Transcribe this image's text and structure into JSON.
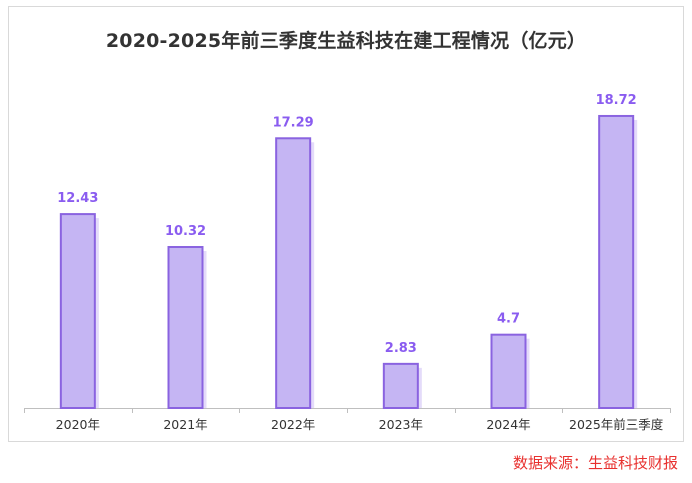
{
  "chart_data": {
    "type": "bar",
    "title": "2020-2025年前三季度生益科技在建工程情况（亿元）",
    "categories": [
      "2020年",
      "2021年",
      "2022年",
      "2023年",
      "2024年",
      "2025年前三季度"
    ],
    "values": [
      12.43,
      10.32,
      17.29,
      2.83,
      4.7,
      18.72
    ],
    "value_labels": [
      "12.43",
      "10.32",
      "17.29",
      "2.83",
      "4.7",
      "18.72"
    ],
    "xlabel": "",
    "ylabel": "",
    "ylim": [
      0,
      20
    ],
    "grid": false,
    "legend": "none"
  },
  "colors": {
    "bar_fill": "#c5b5f3",
    "bar_border": "#8a63e0",
    "bar_shadow": "#e4dbfa",
    "data_label": "#8a5cf0",
    "title": "#333333",
    "axis": "#bfbfbf",
    "source": "#e8312f"
  },
  "source_note": "数据来源：生益科技财报"
}
